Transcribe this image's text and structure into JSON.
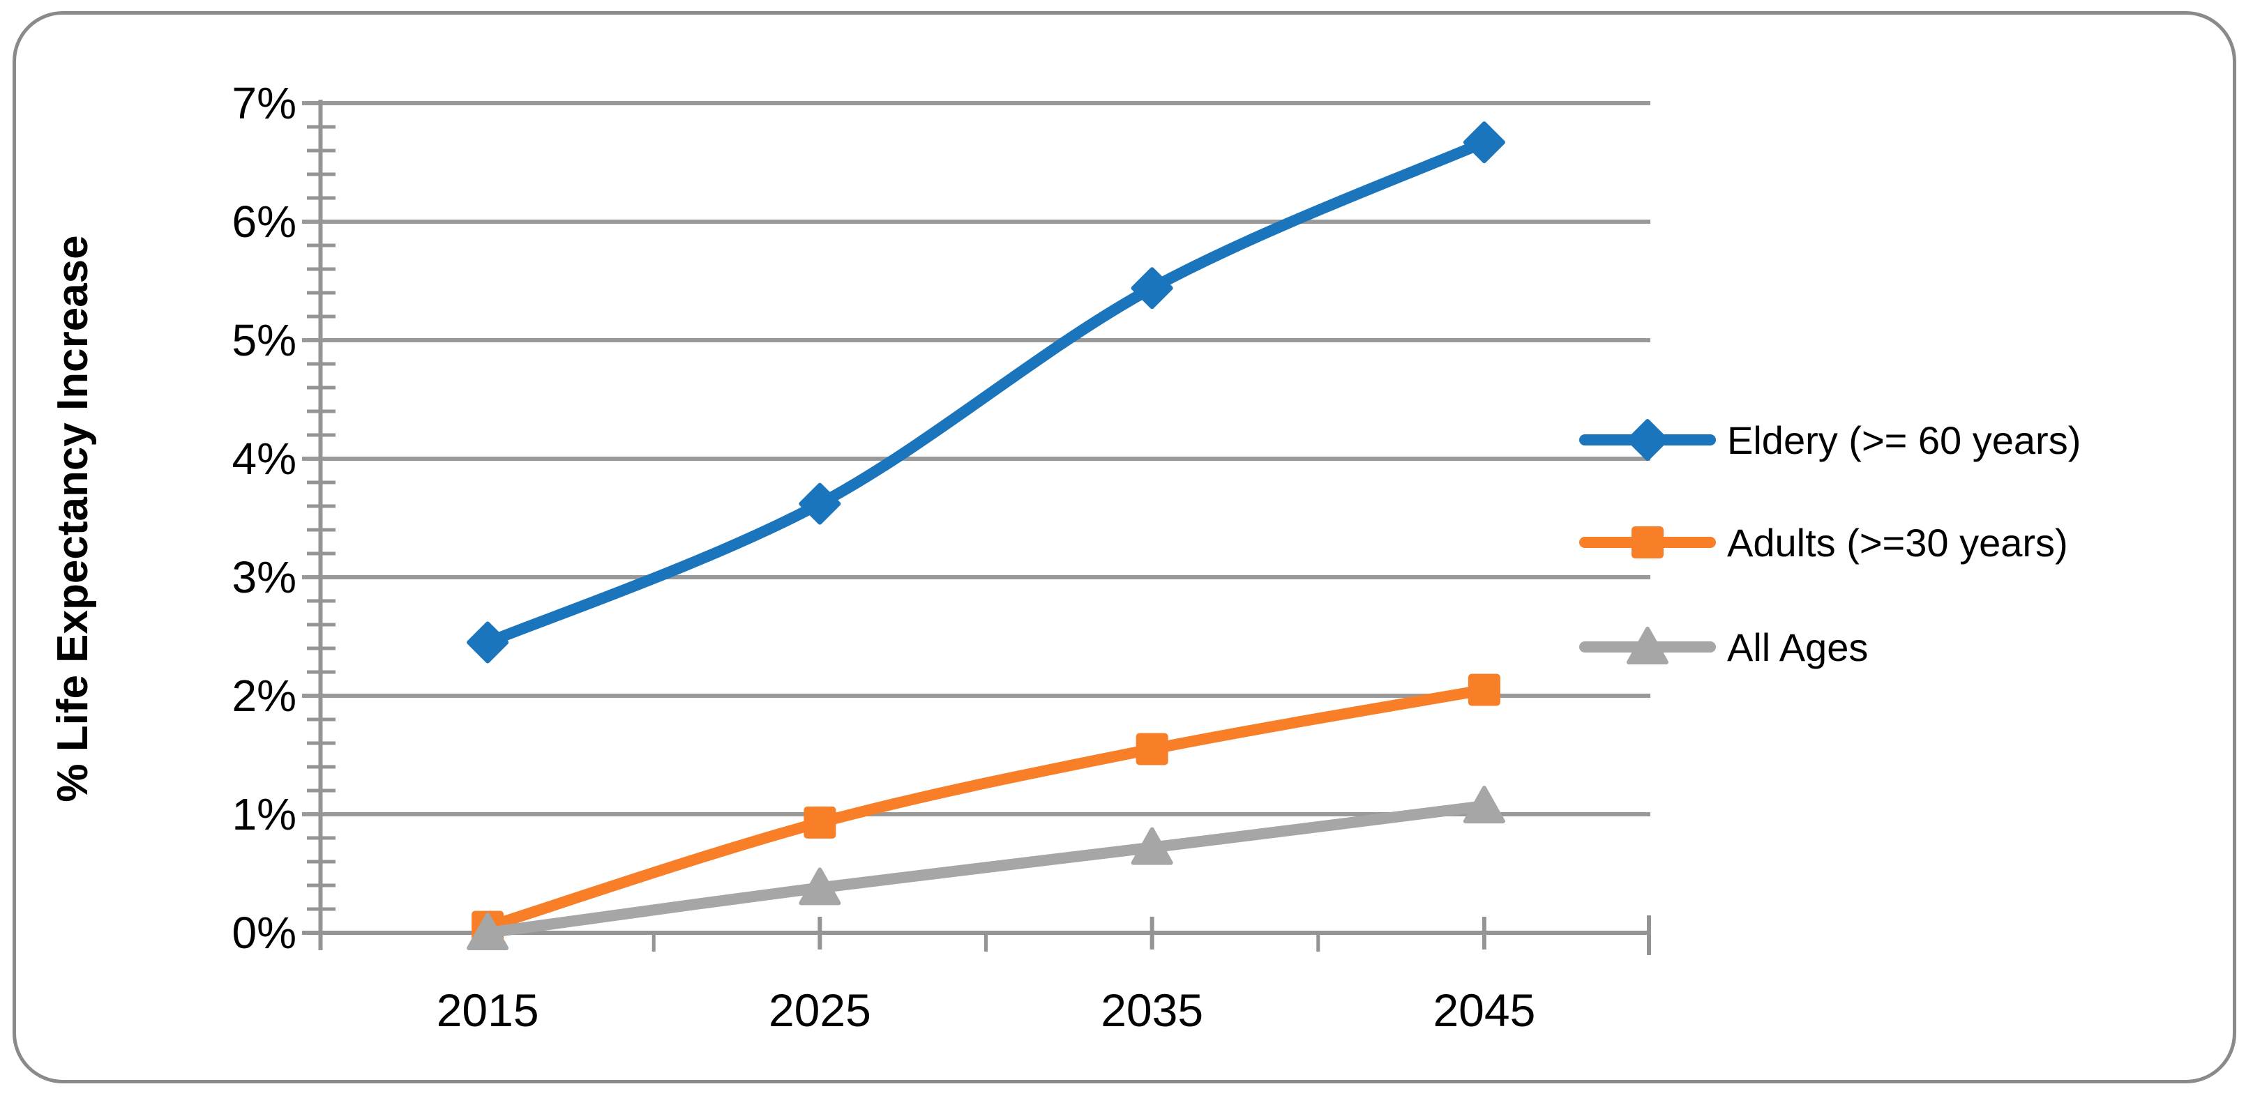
{
  "chart_data": {
    "type": "line",
    "title": "",
    "xlabel": "",
    "ylabel": "% Life Expectancy Increase",
    "categories": [
      "2015",
      "2025",
      "2035",
      "2045"
    ],
    "y_ticks": [
      "0%",
      "1%",
      "2%",
      "3%",
      "4%",
      "5%",
      "6%",
      "7%"
    ],
    "ylim": [
      0,
      7
    ],
    "y_major_step": 1,
    "y_minor_step": 0.2,
    "grid": "horizontal-major",
    "line_style": "smoothed-with-markers",
    "legend_position": "right",
    "series": [
      {
        "name": "Eldery (>= 60 years)",
        "marker": "diamond",
        "color": "#1b75bc",
        "values": [
          2.45,
          3.62,
          5.44,
          6.67
        ]
      },
      {
        "name": "Adults (>=30 years)",
        "marker": "square",
        "color": "#f87e28",
        "values": [
          0.05,
          0.93,
          1.55,
          2.05
        ]
      },
      {
        "name": "All Ages",
        "marker": "triangle",
        "color": "#a6a6a6",
        "values": [
          0.0,
          0.38,
          0.72,
          1.07
        ]
      }
    ]
  },
  "frame": {
    "border_color": "#8a8a8a",
    "background": "#ffffff"
  },
  "axes": {
    "axis_color": "#949494",
    "grid_color": "#999999",
    "tick_color": "#949494",
    "text_color": "#000000"
  }
}
